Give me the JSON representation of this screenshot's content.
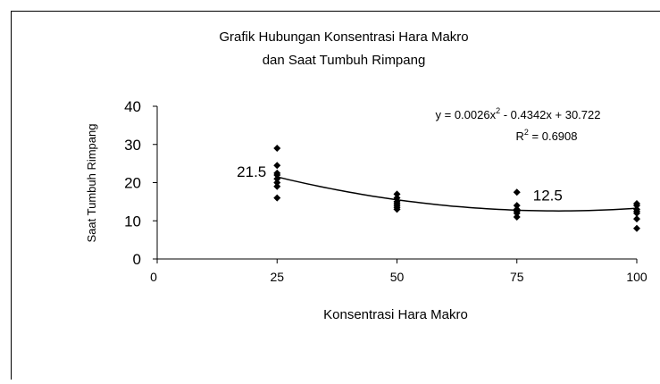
{
  "chart_data": {
    "type": "scatter",
    "title": [
      "Grafik Hubungan Konsentrasi Hara Makro",
      "dan Saat Tumbuh Rimpang"
    ],
    "x_label": "Konsentrasi Hara Makro",
    "y_label": "Saat Tumbuh Rimpang",
    "x": [
      25,
      25,
      25,
      25,
      25,
      25,
      25,
      25,
      50,
      50,
      50,
      50,
      50,
      50,
      50,
      75,
      75,
      75,
      75,
      75,
      75,
      100,
      100,
      100,
      100,
      100,
      100,
      100
    ],
    "values": [
      29,
      24.5,
      22.5,
      22,
      21,
      20,
      19,
      16,
      17,
      16,
      15,
      14.5,
      14,
      13.5,
      13,
      17.5,
      14,
      13,
      12.5,
      12,
      11,
      14.5,
      14,
      13,
      12.5,
      12,
      10.5,
      8
    ],
    "color": "#000000",
    "xlim": [
      0,
      100
    ],
    "xticks": [
      0,
      25,
      50,
      75,
      100
    ],
    "ylim": [
      0,
      40
    ],
    "yticks": [
      0,
      10,
      20,
      30,
      40
    ],
    "trendline": {
      "coefficients": [
        0.0026,
        -0.4342,
        30.722
      ],
      "x_range": [
        25,
        100
      ],
      "equation": [
        "y = 0.0026x",
        "2",
        " - 0.4342x + 30.722"
      ],
      "r_squared": [
        "R",
        "2",
        " = 0.6908"
      ]
    },
    "annotations": [
      {
        "text": "21.5",
        "x": 25,
        "y": 21.5
      },
      {
        "text": "12.5",
        "x": 75,
        "y": 12.5
      }
    ]
  }
}
